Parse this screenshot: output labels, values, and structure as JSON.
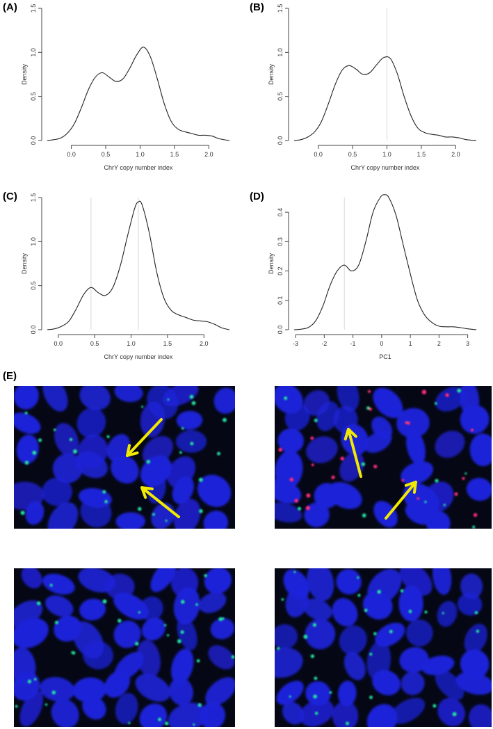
{
  "chart_data": [
    {
      "panel": "(A)",
      "type": "line",
      "xlabel": "ChrY copy number index",
      "ylabel": "Density",
      "xlim": [
        -0.35,
        2.3
      ],
      "ylim": [
        0,
        1.5
      ],
      "xticks": [
        "0.0",
        "0.5",
        "1.0",
        "1.5",
        "2.0"
      ],
      "yticks": [
        "0.0",
        "0.5",
        "1.0",
        "1.5"
      ],
      "x": [
        -0.35,
        -0.25,
        -0.15,
        -0.05,
        0.05,
        0.15,
        0.25,
        0.35,
        0.45,
        0.55,
        0.65,
        0.75,
        0.85,
        0.95,
        1.05,
        1.15,
        1.25,
        1.35,
        1.45,
        1.55,
        1.65,
        1.75,
        1.85,
        1.95,
        2.05,
        2.15,
        2.3
      ],
      "y": [
        0.0,
        0.01,
        0.03,
        0.09,
        0.2,
        0.38,
        0.58,
        0.72,
        0.77,
        0.72,
        0.67,
        0.7,
        0.82,
        0.97,
        1.06,
        0.95,
        0.7,
        0.42,
        0.22,
        0.13,
        0.1,
        0.08,
        0.06,
        0.06,
        0.05,
        0.02,
        0.0
      ]
    },
    {
      "panel": "(B)",
      "type": "line",
      "xlabel": "ChrY copy number index",
      "ylabel": "Density",
      "xlim": [
        -0.35,
        2.3
      ],
      "ylim": [
        0,
        1.5
      ],
      "xticks": [
        "0.0",
        "0.5",
        "1.0",
        "1.5",
        "2.0"
      ],
      "yticks": [
        "0.0",
        "0.5",
        "1.0",
        "1.5"
      ],
      "reference_lines_x": [
        1.0
      ],
      "x": [
        -0.35,
        -0.25,
        -0.15,
        -0.05,
        0.05,
        0.15,
        0.25,
        0.35,
        0.45,
        0.55,
        0.65,
        0.75,
        0.85,
        0.95,
        1.05,
        1.15,
        1.25,
        1.35,
        1.45,
        1.55,
        1.65,
        1.75,
        1.85,
        1.95,
        2.05,
        2.15,
        2.3
      ],
      "y": [
        0.0,
        0.01,
        0.04,
        0.1,
        0.22,
        0.42,
        0.64,
        0.8,
        0.85,
        0.81,
        0.75,
        0.77,
        0.86,
        0.94,
        0.93,
        0.76,
        0.5,
        0.28,
        0.14,
        0.09,
        0.07,
        0.06,
        0.04,
        0.04,
        0.03,
        0.01,
        0.0
      ]
    },
    {
      "panel": "(C)",
      "type": "line",
      "xlabel": "ChrY copy number index",
      "ylabel": "Density",
      "xlim": [
        -0.15,
        2.35
      ],
      "ylim": [
        0,
        1.5
      ],
      "xticks": [
        "0.0",
        "0.5",
        "1.0",
        "1.5",
        "2.0"
      ],
      "yticks": [
        "0.0",
        "0.5",
        "1.0",
        "1.5"
      ],
      "reference_lines_x": [
        0.45,
        1.1
      ],
      "x": [
        -0.15,
        -0.05,
        0.05,
        0.15,
        0.25,
        0.35,
        0.45,
        0.55,
        0.65,
        0.75,
        0.85,
        0.95,
        1.05,
        1.1,
        1.15,
        1.25,
        1.35,
        1.45,
        1.55,
        1.65,
        1.75,
        1.85,
        1.95,
        2.05,
        2.15,
        2.25,
        2.35
      ],
      "y": [
        0.0,
        0.01,
        0.04,
        0.1,
        0.24,
        0.4,
        0.48,
        0.42,
        0.39,
        0.48,
        0.72,
        1.06,
        1.38,
        1.45,
        1.42,
        1.1,
        0.66,
        0.36,
        0.22,
        0.17,
        0.14,
        0.11,
        0.1,
        0.09,
        0.06,
        0.02,
        0.0
      ]
    },
    {
      "panel": "(D)",
      "type": "line",
      "xlabel": "PC1",
      "ylabel": "Density",
      "xlim": [
        -3.05,
        3.3
      ],
      "ylim": [
        0,
        0.45
      ],
      "xticks": [
        "-3",
        "-2",
        "-1",
        "0",
        "1",
        "2",
        "3"
      ],
      "yticks": [
        "0.0",
        "0.1",
        "0.2",
        "0.3",
        "0.4"
      ],
      "reference_lines_x": [
        -1.3
      ],
      "x": [
        -3.05,
        -2.8,
        -2.55,
        -2.3,
        -2.05,
        -1.8,
        -1.55,
        -1.3,
        -1.05,
        -0.8,
        -0.55,
        -0.3,
        -0.05,
        0.1,
        0.25,
        0.5,
        0.75,
        1.0,
        1.25,
        1.5,
        1.75,
        2.0,
        2.25,
        2.5,
        2.75,
        3.0,
        3.3
      ],
      "y": [
        0.0,
        0.002,
        0.008,
        0.03,
        0.08,
        0.15,
        0.2,
        0.22,
        0.2,
        0.22,
        0.3,
        0.4,
        0.45,
        0.46,
        0.45,
        0.39,
        0.29,
        0.19,
        0.1,
        0.05,
        0.025,
        0.012,
        0.01,
        0.01,
        0.007,
        0.003,
        0.0
      ]
    }
  ],
  "figure_e": {
    "label": "(E)",
    "colors": {
      "background": "#050814",
      "nucleus": "#1d22d8",
      "green_signal": "#22e0a0",
      "red_signal": "#ff2a7a",
      "arrow": "#f2e900"
    }
  }
}
